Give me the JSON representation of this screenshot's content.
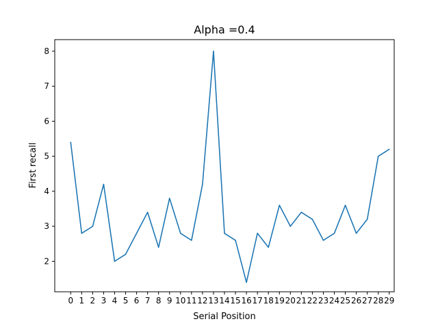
{
  "chart_data": {
    "type": "line",
    "title": "Alpha =0.4",
    "xlabel": "Serial Position",
    "ylabel": "First recall",
    "x": [
      0,
      1,
      2,
      3,
      4,
      5,
      6,
      7,
      8,
      9,
      10,
      11,
      12,
      13,
      14,
      15,
      16,
      17,
      18,
      19,
      20,
      21,
      22,
      23,
      24,
      25,
      26,
      27,
      28,
      29
    ],
    "xticks": [
      "0",
      "1",
      "2",
      "3",
      "4",
      "5",
      "6",
      "7",
      "8",
      "9",
      "10",
      "11",
      "12",
      "13",
      "14",
      "15",
      "16",
      "17",
      "18",
      "19",
      "20",
      "21",
      "22",
      "23",
      "24",
      "25",
      "26",
      "27",
      "28",
      "29"
    ],
    "yticks": [
      "2",
      "3",
      "4",
      "5",
      "6",
      "7",
      "8"
    ],
    "series": [
      {
        "values": [
          5.4,
          2.8,
          3.0,
          4.2,
          2.0,
          2.2,
          2.8,
          3.4,
          2.4,
          3.8,
          2.8,
          2.6,
          4.2,
          8.0,
          2.8,
          2.6,
          1.4,
          2.8,
          2.4,
          3.6,
          3.0,
          3.4,
          3.2,
          2.6,
          2.8,
          3.6,
          2.8,
          3.2,
          5.0,
          5.2
        ],
        "color": "#1f77b4"
      }
    ],
    "xlim": [
      -1.45,
      29.45
    ],
    "ylim": [
      1.13,
      8.33
    ],
    "grid": false,
    "legend": "none"
  }
}
